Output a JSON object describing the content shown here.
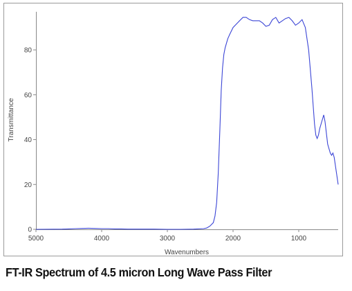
{
  "caption": "FT-IR Spectrum of 4.5 micron Long Wave Pass Filter",
  "chart_data": {
    "type": "line",
    "title": "",
    "xlabel": "Wavenumbers",
    "ylabel": "Transmittance",
    "xlim": [
      5000,
      400
    ],
    "ylim": [
      0,
      97
    ],
    "x_reversed": true,
    "xticks": [
      5000,
      4000,
      3000,
      2000,
      1000
    ],
    "yticks": [
      0,
      20,
      40,
      60,
      80
    ],
    "grid": false,
    "legend": "none",
    "line_color": "#3b45d6",
    "series": [
      {
        "x": [
          5000,
          4600,
          4500,
          4400,
          4300,
          4200,
          4100,
          4000,
          3900,
          3800,
          3700,
          3600,
          3400,
          3200,
          3000,
          2800,
          2600,
          2450,
          2400,
          2350,
          2300,
          2275,
          2250,
          2225,
          2200,
          2180,
          2160,
          2140,
          2120,
          2100,
          2080,
          2050,
          2000,
          1950,
          1900,
          1850,
          1800,
          1750,
          1700,
          1650,
          1600,
          1550,
          1500,
          1450,
          1400,
          1350,
          1300,
          1250,
          1200,
          1150,
          1100,
          1050,
          1000,
          950,
          900,
          850,
          800,
          780,
          760,
          740,
          720,
          700,
          680,
          660,
          640,
          620,
          600,
          580,
          560,
          540,
          520,
          500,
          480,
          460,
          440,
          420,
          400
        ],
        "y": [
          0,
          0.1,
          0.2,
          0.3,
          0.4,
          0.5,
          0.4,
          0.3,
          0.3,
          0.2,
          0.2,
          0.1,
          0.1,
          0.1,
          0,
          0,
          0.1,
          0.3,
          0.6,
          1.5,
          3,
          6,
          12,
          25,
          45,
          62,
          72,
          78,
          81,
          83,
          85,
          87,
          90,
          91.5,
          93,
          94.5,
          94.5,
          93.5,
          93,
          93,
          93,
          92,
          90.5,
          91,
          93.5,
          94.5,
          92,
          93,
          94,
          94.5,
          93,
          91,
          92,
          93.5,
          90,
          80,
          63,
          55,
          47,
          42,
          40.5,
          42,
          45,
          47,
          49,
          51,
          48,
          43,
          38,
          36,
          34,
          33,
          34,
          32,
          28,
          24,
          20
        ]
      }
    ]
  }
}
